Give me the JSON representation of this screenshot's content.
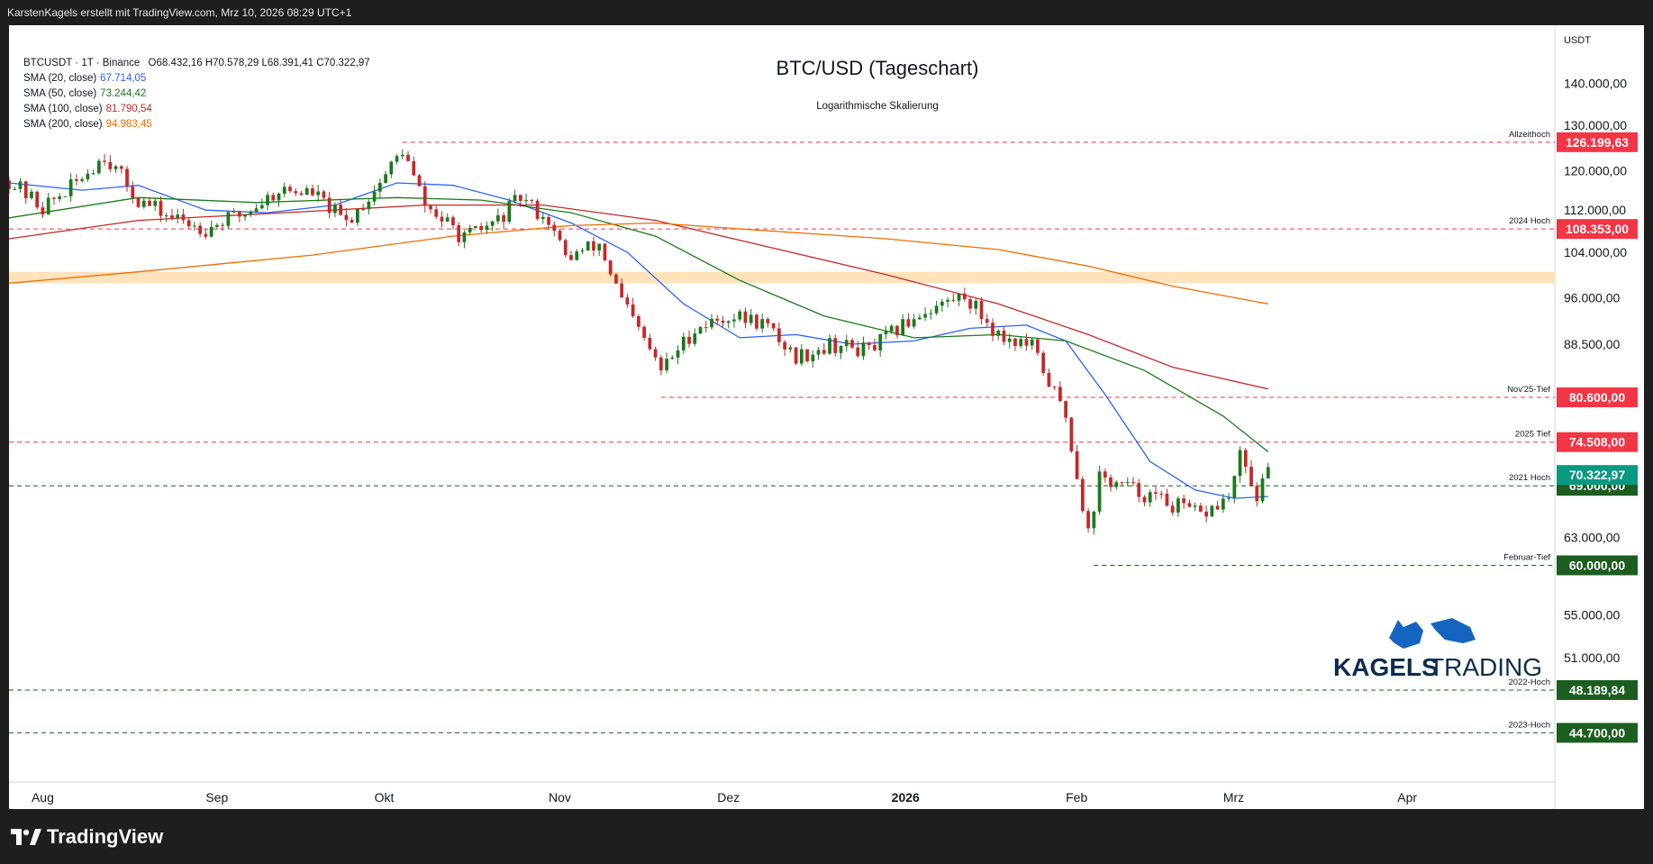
{
  "header": {
    "attribution": "KarstenKagels erstellt mit TradingView.com, Mrz 10, 2026 08:29 UTC+1"
  },
  "legend": {
    "symbol": "BTCUSDT · 1T · Binance",
    "ohlc": "O68.432,16  H70.578,29  L68.391,41  C70.322,97",
    "sma": [
      {
        "label": "SMA (20, close)",
        "value": "67.714,05",
        "color": "#2962ff"
      },
      {
        "label": "SMA (50, close)",
        "value": "73.244,42",
        "color": "#1b7a1b"
      },
      {
        "label": "SMA (100, close)",
        "value": "81.790,54",
        "color": "#c62828"
      },
      {
        "label": "SMA (200, close)",
        "value": "94.983,45",
        "color": "#ef6c00"
      }
    ]
  },
  "footer": {
    "brand": "TradingView",
    "watermark": "KAGELSTRADING",
    "watermark_a": "KAGELS",
    "watermark_b": "TRADING"
  },
  "chart_data": {
    "type": "candlestick",
    "title": "BTC/USD (Tageschart)",
    "subtitle": "Logarithmische Skalierung",
    "scale": "log",
    "currency_label": "USDT",
    "ylim": [
      41000,
      155000
    ],
    "y_ticks": [
      {
        "value": 140000,
        "label": "140.000,00"
      },
      {
        "value": 130000,
        "label": "130.000,00"
      },
      {
        "value": 120000,
        "label": "120.000,00"
      },
      {
        "value": 112000,
        "label": "112.000,00"
      },
      {
        "value": 104000,
        "label": "104.000,00"
      },
      {
        "value": 96000,
        "label": "96.000,00"
      },
      {
        "value": 88500,
        "label": "88.500,00"
      },
      {
        "value": 63000,
        "label": "63.000,00"
      },
      {
        "value": 55000,
        "label": "55.000,00"
      },
      {
        "value": 51000,
        "label": "51.000,00"
      }
    ],
    "x_labels": [
      {
        "date": "2025-08-01",
        "label": "Aug",
        "bold": false
      },
      {
        "date": "2025-09-01",
        "label": "Sep",
        "bold": false
      },
      {
        "date": "2025-10-01",
        "label": "Okt",
        "bold": false
      },
      {
        "date": "2025-11-01",
        "label": "Nov",
        "bold": false
      },
      {
        "date": "2025-12-01",
        "label": "Dez",
        "bold": false
      },
      {
        "date": "2026-01-01",
        "label": "2026",
        "bold": true
      },
      {
        "date": "2026-02-01",
        "label": "Feb",
        "bold": false
      },
      {
        "date": "2026-03-01",
        "label": "Mrz",
        "bold": false
      },
      {
        "date": "2026-04-01",
        "label": "Apr",
        "bold": false
      }
    ],
    "x_range": [
      "2025-07-28",
      "2026-04-29"
    ],
    "levels": [
      {
        "price": 126199.63,
        "label": "126.199,63",
        "name": "Allzeithoch",
        "color": "#f23645",
        "start": "2025-10-06"
      },
      {
        "price": 108353.0,
        "label": "108.353,00",
        "name": "2024 Hoch",
        "color": "#f23645",
        "start": "2025-07-28"
      },
      {
        "price": 80600.0,
        "label": "80.600,00",
        "name": "Nov'25-Tief",
        "color": "#f23645",
        "start": "2025-11-21"
      },
      {
        "price": 74508.0,
        "label": "74.508,00",
        "name": "2025 Tief",
        "color": "#f23645",
        "start": "2025-07-28"
      },
      {
        "price": 69000.0,
        "label": "69.000,00",
        "name": "2021 Hoch",
        "color": "#1b5e20",
        "start": "2025-07-28"
      },
      {
        "price": 60000.0,
        "label": "60.000,00",
        "name": "Februar-Tief",
        "color": "#1b5e20",
        "start": "2026-02-06"
      },
      {
        "price": 48189.84,
        "label": "48.189,84",
        "name": "2022-Hoch",
        "color": "#1b5e20",
        "start": "2025-07-28"
      },
      {
        "price": 44700.0,
        "label": "44.700,00",
        "name": "2023-Hoch",
        "color": "#1b5e20",
        "start": "2025-07-28"
      }
    ],
    "last_price": {
      "price": 70322.97,
      "label": "70.322,97",
      "color": "#089981"
    },
    "zone": {
      "low": 98500,
      "high": 100500,
      "color": "#ffe0b2"
    },
    "close_path": [
      [
        "2025-07-28",
        118000
      ],
      [
        "2025-08-03",
        112500
      ],
      [
        "2025-08-08",
        116500
      ],
      [
        "2025-08-14",
        123500
      ],
      [
        "2025-08-20",
        114000
      ],
      [
        "2025-08-26",
        110500
      ],
      [
        "2025-09-01",
        108500
      ],
      [
        "2025-09-08",
        111500
      ],
      [
        "2025-09-14",
        116000
      ],
      [
        "2025-09-20",
        115500
      ],
      [
        "2025-09-26",
        109500
      ],
      [
        "2025-10-01",
        116000
      ],
      [
        "2025-10-06",
        124500
      ],
      [
        "2025-10-10",
        113000
      ],
      [
        "2025-10-17",
        106500
      ],
      [
        "2025-10-23",
        110000
      ],
      [
        "2025-10-27",
        114500
      ],
      [
        "2025-11-01",
        110000
      ],
      [
        "2025-11-04",
        103000
      ],
      [
        "2025-11-10",
        105500
      ],
      [
        "2025-11-14",
        95500
      ],
      [
        "2025-11-21",
        84500
      ],
      [
        "2025-11-27",
        91000
      ],
      [
        "2025-12-03",
        93000
      ],
      [
        "2025-12-09",
        92000
      ],
      [
        "2025-12-15",
        86500
      ],
      [
        "2025-12-21",
        88500
      ],
      [
        "2025-12-28",
        87500
      ],
      [
        "2026-01-06",
        93500
      ],
      [
        "2026-01-14",
        96500
      ],
      [
        "2026-01-20",
        90000
      ],
      [
        "2026-01-26",
        88000
      ],
      [
        "2026-02-01",
        78000
      ],
      [
        "2026-02-05",
        63500
      ],
      [
        "2026-02-07",
        70000
      ],
      [
        "2026-02-13",
        68500
      ],
      [
        "2026-02-19",
        67000
      ],
      [
        "2026-02-25",
        65500
      ],
      [
        "2026-03-02",
        67500
      ],
      [
        "2026-03-04",
        72500
      ],
      [
        "2026-03-07",
        67800
      ],
      [
        "2026-03-09",
        70322
      ]
    ],
    "series": [
      {
        "name": "SMA (20, close)",
        "color": "#2962ff",
        "points": [
          [
            "2025-07-28",
            117500
          ],
          [
            "2025-08-10",
            116000
          ],
          [
            "2025-08-20",
            117000
          ],
          [
            "2025-09-01",
            112000
          ],
          [
            "2025-09-12",
            111500
          ],
          [
            "2025-09-24",
            113000
          ],
          [
            "2025-10-05",
            117500
          ],
          [
            "2025-10-15",
            117000
          ],
          [
            "2025-10-25",
            114000
          ],
          [
            "2025-11-05",
            109500
          ],
          [
            "2025-11-15",
            104000
          ],
          [
            "2025-11-25",
            95000
          ],
          [
            "2025-12-05",
            89500
          ],
          [
            "2025-12-15",
            90000
          ],
          [
            "2025-12-25",
            88500
          ],
          [
            "2026-01-05",
            89000
          ],
          [
            "2026-01-15",
            91000
          ],
          [
            "2026-01-25",
            91500
          ],
          [
            "2026-02-01",
            89000
          ],
          [
            "2026-02-08",
            81000
          ],
          [
            "2026-02-16",
            72000
          ],
          [
            "2026-02-24",
            68500
          ],
          [
            "2026-03-03",
            67500
          ],
          [
            "2026-03-09",
            67714
          ]
        ]
      },
      {
        "name": "SMA (50, close)",
        "color": "#1b7a1b",
        "points": [
          [
            "2025-07-28",
            110500
          ],
          [
            "2025-08-20",
            114500
          ],
          [
            "2025-09-10",
            113500
          ],
          [
            "2025-10-05",
            114500
          ],
          [
            "2025-10-20",
            114000
          ],
          [
            "2025-11-05",
            111500
          ],
          [
            "2025-11-20",
            107000
          ],
          [
            "2025-12-05",
            99000
          ],
          [
            "2025-12-20",
            93000
          ],
          [
            "2026-01-05",
            89500
          ],
          [
            "2026-01-20",
            90000
          ],
          [
            "2026-02-01",
            89000
          ],
          [
            "2026-02-15",
            84500
          ],
          [
            "2026-03-01",
            78000
          ],
          [
            "2026-03-09",
            73244
          ]
        ]
      },
      {
        "name": "SMA (100, close)",
        "color": "#c62828",
        "points": [
          [
            "2025-07-28",
            106500
          ],
          [
            "2025-08-20",
            110000
          ],
          [
            "2025-09-15",
            111500
          ],
          [
            "2025-10-10",
            113000
          ],
          [
            "2025-10-31",
            113000
          ],
          [
            "2025-11-20",
            110000
          ],
          [
            "2025-12-10",
            105000
          ],
          [
            "2025-12-31",
            100000
          ],
          [
            "2026-01-20",
            95000
          ],
          [
            "2026-02-05",
            90000
          ],
          [
            "2026-02-20",
            85000
          ],
          [
            "2026-03-09",
            81791
          ]
        ]
      },
      {
        "name": "SMA (200, close)",
        "color": "#ef6c00",
        "points": [
          [
            "2025-07-28",
            98500
          ],
          [
            "2025-08-20",
            100500
          ],
          [
            "2025-09-20",
            103500
          ],
          [
            "2025-10-15",
            107000
          ],
          [
            "2025-11-05",
            109000
          ],
          [
            "2025-11-20",
            109500
          ],
          [
            "2025-12-10",
            108000
          ],
          [
            "2025-12-31",
            106500
          ],
          [
            "2026-01-20",
            104500
          ],
          [
            "2026-02-05",
            101500
          ],
          [
            "2026-02-20",
            98000
          ],
          [
            "2026-03-09",
            94983
          ]
        ]
      }
    ]
  }
}
